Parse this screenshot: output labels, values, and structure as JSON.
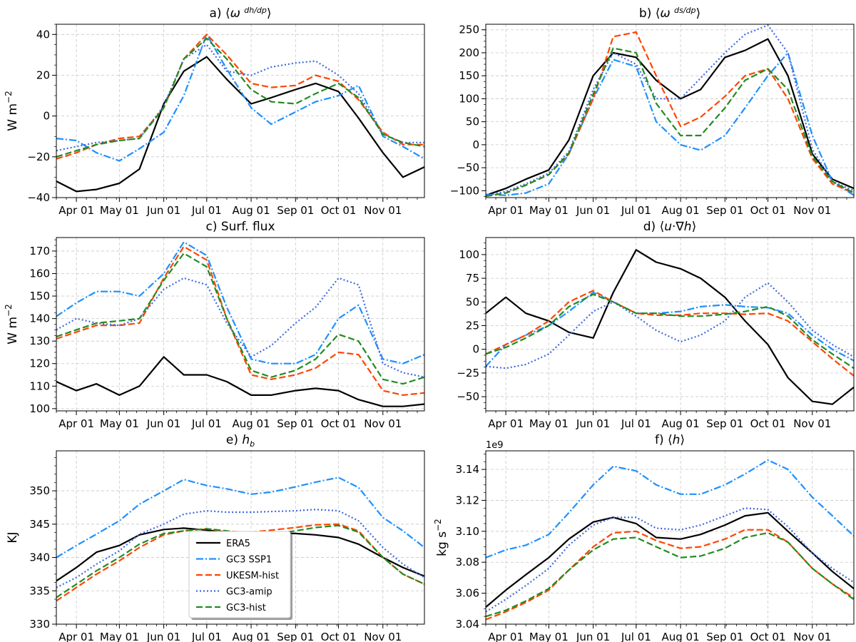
{
  "figure": {
    "x_tick_labels": [
      "Apr 01",
      "May 01",
      "Jun 01",
      "Jul 01",
      "Aug 01",
      "Sep 01",
      "Oct 01",
      "Nov 01"
    ],
    "series_styles": [
      {
        "name": "ERA5",
        "color": "#000000",
        "dash": "solid"
      },
      {
        "name": "GC3 SSP1",
        "color": "#1E90FF",
        "dash": "dashdot"
      },
      {
        "name": "UKESM-hist",
        "color": "#FF4500",
        "dash": "dashed"
      },
      {
        "name": "GC3-amip",
        "color": "#4169E1",
        "dash": "dotted"
      },
      {
        "name": "GC3-hist",
        "color": "#228B22",
        "dash": "dashed"
      }
    ],
    "legend_location": "panel e, lower center"
  },
  "chart_data": [
    {
      "type": "line",
      "panel": "a",
      "title": "a) ⟨ω dh/dp⟩",
      "ylabel": "W m−2",
      "xlim": [
        "Mar 18",
        "Nov 30"
      ],
      "ylim": [
        -40,
        45
      ],
      "yticks": [
        -40,
        -20,
        0,
        20,
        40
      ],
      "x": [
        "Mar 18",
        "Apr 01",
        "Apr 15",
        "May 01",
        "May 15",
        "Jun 01",
        "Jun 15",
        "Jul 01",
        "Jul 15",
        "Aug 01",
        "Aug 15",
        "Sep 01",
        "Sep 15",
        "Oct 01",
        "Oct 15",
        "Nov 01",
        "Nov 15",
        "Nov 30"
      ],
      "series": [
        {
          "name": "ERA5",
          "values": [
            -32,
            -37,
            -36,
            -33,
            -26,
            6,
            22,
            29,
            18,
            6,
            9,
            13,
            16,
            12,
            -1,
            -18,
            -30,
            -25
          ]
        },
        {
          "name": "GC3 SSP1",
          "values": [
            -11,
            -12,
            -18,
            -22,
            -16,
            -8,
            10,
            40,
            23,
            4,
            -4,
            2,
            7,
            10,
            15,
            -10,
            -15,
            -21
          ]
        },
        {
          "name": "UKESM-hist",
          "values": [
            -21,
            -18,
            -14,
            -11,
            -10,
            4,
            28,
            40,
            30,
            16,
            14,
            15,
            20,
            17,
            8,
            -8,
            -14,
            -14
          ]
        },
        {
          "name": "GC3-amip",
          "values": [
            -17,
            -15,
            -13,
            -12,
            -11,
            5,
            28,
            35,
            22,
            20,
            24,
            26,
            27,
            20,
            11,
            -9,
            -13,
            -13
          ]
        },
        {
          "name": "GC3-hist",
          "values": [
            -20,
            -17,
            -14,
            -12,
            -11,
            4,
            28,
            38,
            28,
            13,
            7,
            6,
            11,
            16,
            9,
            -9,
            -13,
            -15
          ]
        }
      ]
    },
    {
      "type": "line",
      "panel": "b",
      "title": "b) ⟨ω ds/dp⟩",
      "ylabel": "",
      "xlim": [
        "Mar 18",
        "Nov 30"
      ],
      "ylim": [
        -115,
        262
      ],
      "yticks": [
        -100,
        -50,
        0,
        50,
        100,
        150,
        200,
        250
      ],
      "x": [
        "Mar 18",
        "Apr 01",
        "Apr 15",
        "May 01",
        "May 15",
        "Jun 01",
        "Jun 15",
        "Jul 01",
        "Jul 15",
        "Aug 01",
        "Aug 15",
        "Sep 01",
        "Sep 15",
        "Oct 01",
        "Oct 15",
        "Nov 01",
        "Nov 15",
        "Nov 30"
      ],
      "series": [
        {
          "name": "ERA5",
          "values": [
            -110,
            -95,
            -75,
            -55,
            10,
            150,
            200,
            190,
            140,
            100,
            120,
            190,
            205,
            230,
            150,
            -20,
            -75,
            -95
          ]
        },
        {
          "name": "GC3 SSP1",
          "values": [
            -108,
            -110,
            -105,
            -85,
            -20,
            100,
            185,
            170,
            50,
            0,
            -12,
            20,
            80,
            150,
            200,
            20,
            -80,
            -110
          ]
        },
        {
          "name": "UKESM-hist",
          "values": [
            -112,
            -105,
            -88,
            -65,
            -20,
            100,
            235,
            245,
            150,
            40,
            60,
            105,
            150,
            165,
            100,
            -30,
            -85,
            -105
          ]
        },
        {
          "name": "GC3-amip",
          "values": [
            -110,
            -102,
            -85,
            -62,
            -15,
            120,
            200,
            175,
            100,
            100,
            145,
            200,
            240,
            260,
            200,
            -10,
            -80,
            -100
          ]
        },
        {
          "name": "GC3-hist",
          "values": [
            -112,
            -105,
            -88,
            -65,
            -18,
            110,
            210,
            200,
            90,
            20,
            20,
            80,
            140,
            165,
            120,
            -25,
            -80,
            -105
          ]
        }
      ]
    },
    {
      "type": "line",
      "panel": "c",
      "title": "c) Surf. flux",
      "ylabel": "W m−2",
      "xlim": [
        "Mar 18",
        "Nov 30"
      ],
      "ylim": [
        99,
        176
      ],
      "yticks": [
        100,
        110,
        120,
        130,
        140,
        150,
        160,
        170
      ],
      "x": [
        "Mar 18",
        "Apr 01",
        "Apr 15",
        "May 01",
        "May 15",
        "Jun 01",
        "Jun 15",
        "Jul 01",
        "Jul 15",
        "Aug 01",
        "Aug 15",
        "Sep 01",
        "Sep 15",
        "Oct 01",
        "Oct 15",
        "Nov 01",
        "Nov 15",
        "Nov 30"
      ],
      "series": [
        {
          "name": "ERA5",
          "values": [
            112,
            108,
            111,
            106,
            110,
            123,
            115,
            115,
            112,
            106,
            106,
            108,
            109,
            108,
            104,
            101,
            101,
            102
          ]
        },
        {
          "name": "GC3 SSP1",
          "values": [
            141,
            147,
            152,
            152,
            150,
            160,
            174,
            168,
            145,
            122,
            120,
            120,
            124,
            140,
            146,
            122,
            120,
            124
          ]
        },
        {
          "name": "UKESM-hist",
          "values": [
            131,
            134,
            137,
            137,
            138,
            158,
            172,
            166,
            140,
            115,
            113,
            115,
            118,
            125,
            124,
            108,
            106,
            107
          ]
        },
        {
          "name": "GC3-amip",
          "values": [
            135,
            140,
            138,
            137,
            140,
            153,
            158,
            155,
            138,
            123,
            128,
            138,
            145,
            158,
            155,
            120,
            116,
            114
          ]
        },
        {
          "name": "GC3-hist",
          "values": [
            132,
            135,
            138,
            139,
            140,
            157,
            169,
            163,
            140,
            117,
            114,
            117,
            122,
            133,
            130,
            113,
            111,
            114
          ]
        }
      ]
    },
    {
      "type": "line",
      "panel": "d",
      "title": "d) ⟨u·∇h⟩",
      "ylabel": "",
      "xlim": [
        "Mar 18",
        "Nov 30"
      ],
      "ylim": [
        -65,
        118
      ],
      "yticks": [
        -50,
        -25,
        0,
        25,
        50,
        75,
        100
      ],
      "x": [
        "Mar 18",
        "Apr 01",
        "Apr 15",
        "May 01",
        "May 15",
        "Jun 01",
        "Jun 15",
        "Jul 01",
        "Jul 15",
        "Aug 01",
        "Aug 15",
        "Sep 01",
        "Sep 15",
        "Oct 01",
        "Oct 15",
        "Nov 01",
        "Nov 15",
        "Nov 30"
      ],
      "series": [
        {
          "name": "ERA5",
          "values": [
            38,
            55,
            38,
            30,
            18,
            12,
            60,
            105,
            92,
            85,
            75,
            55,
            30,
            5,
            -30,
            -55,
            -58,
            -40
          ]
        },
        {
          "name": "GC3 SSP1",
          "values": [
            -18,
            5,
            15,
            25,
            40,
            60,
            50,
            38,
            38,
            40,
            45,
            47,
            45,
            44,
            38,
            15,
            0,
            -12
          ]
        },
        {
          "name": "UKESM-hist",
          "values": [
            -5,
            5,
            15,
            30,
            50,
            62,
            50,
            38,
            36,
            36,
            38,
            38,
            37,
            38,
            30,
            8,
            -10,
            -28
          ]
        },
        {
          "name": "GC3-amip",
          "values": [
            -18,
            -20,
            -16,
            -5,
            15,
            40,
            50,
            35,
            20,
            8,
            15,
            30,
            55,
            70,
            50,
            20,
            5,
            -8
          ]
        },
        {
          "name": "GC3-hist",
          "values": [
            -5,
            2,
            12,
            25,
            45,
            58,
            50,
            38,
            38,
            35,
            35,
            37,
            40,
            45,
            35,
            10,
            -5,
            -20
          ]
        }
      ]
    },
    {
      "type": "line",
      "panel": "e",
      "title": "e) hb",
      "ylabel": "KJ",
      "xlim": [
        "Mar 18",
        "Nov 30"
      ],
      "ylim": [
        330,
        356
      ],
      "yticks": [
        330,
        335,
        340,
        345,
        350
      ],
      "x": [
        "Mar 18",
        "Apr 01",
        "Apr 15",
        "May 01",
        "May 15",
        "Jun 01",
        "Jun 15",
        "Jul 01",
        "Jul 15",
        "Aug 01",
        "Aug 15",
        "Sep 01",
        "Sep 15",
        "Oct 01",
        "Oct 15",
        "Nov 01",
        "Nov 15",
        "Nov 30"
      ],
      "series": [
        {
          "name": "ERA5",
          "values": [
            336.5,
            338.5,
            340.8,
            341.8,
            343.4,
            344.2,
            344.4,
            344.1,
            343.8,
            343.6,
            343.7,
            343.6,
            343.4,
            343.0,
            342.0,
            340.0,
            338.5,
            337.2
          ]
        },
        {
          "name": "GC3 SSP1",
          "values": [
            340,
            341.8,
            343.5,
            345.5,
            348,
            350,
            351.7,
            350.8,
            350.3,
            349.5,
            349.8,
            350.6,
            351.3,
            352,
            350.5,
            346,
            344,
            341.5
          ]
        },
        {
          "name": "UKESM-hist",
          "values": [
            333.5,
            335.5,
            337.5,
            339.5,
            341.5,
            343.4,
            344,
            344.3,
            343.9,
            343.8,
            344.1,
            344.5,
            344.9,
            345,
            344,
            340,
            337.5,
            336
          ]
        },
        {
          "name": "GC3-amip",
          "values": [
            335.5,
            337,
            339,
            341,
            343.5,
            345,
            346.5,
            347,
            346.8,
            346.8,
            346.9,
            347,
            347.2,
            347,
            345.5,
            341.5,
            339,
            337
          ]
        },
        {
          "name": "GC3-hist",
          "values": [
            334,
            336,
            338,
            340,
            342,
            343.6,
            344,
            344.3,
            344,
            343.5,
            343.5,
            344,
            344.5,
            344.8,
            343.8,
            340,
            337.5,
            336
          ]
        }
      ]
    },
    {
      "type": "line",
      "panel": "f",
      "title": "f) ⟨h⟩",
      "ylabel": "kg s−2",
      "scale_label": "1e9",
      "xlim": [
        "Mar 18",
        "Nov 30"
      ],
      "ylim": [
        3.04,
        3.152
      ],
      "yticks": [
        3.04,
        3.06,
        3.08,
        3.1,
        3.12,
        3.14
      ],
      "y_tick_labels": [
        "3.04",
        "3.06",
        "3.08",
        "3.10",
        "3.12",
        "3.14"
      ],
      "x": [
        "Mar 18",
        "Apr 01",
        "Apr 15",
        "May 01",
        "May 15",
        "Jun 01",
        "Jun 15",
        "Jul 01",
        "Jul 15",
        "Aug 01",
        "Aug 15",
        "Sep 01",
        "Sep 15",
        "Oct 01",
        "Oct 15",
        "Nov 01",
        "Nov 15",
        "Nov 30"
      ],
      "series": [
        {
          "name": "ERA5",
          "values": [
            3.051,
            3.062,
            3.072,
            3.083,
            3.095,
            3.106,
            3.109,
            3.105,
            3.096,
            3.095,
            3.098,
            3.104,
            3.11,
            3.112,
            3.1,
            3.086,
            3.074,
            3.063
          ]
        },
        {
          "name": "GC3 SSP1",
          "values": [
            3.083,
            3.088,
            3.091,
            3.098,
            3.112,
            3.13,
            3.142,
            3.139,
            3.13,
            3.124,
            3.124,
            3.13,
            3.137,
            3.146,
            3.14,
            3.122,
            3.11,
            3.097
          ]
        },
        {
          "name": "UKESM-hist",
          "values": [
            3.043,
            3.048,
            3.054,
            3.062,
            3.075,
            3.09,
            3.099,
            3.1,
            3.094,
            3.089,
            3.09,
            3.095,
            3.101,
            3.101,
            3.093,
            3.076,
            3.066,
            3.057
          ]
        },
        {
          "name": "GC3-amip",
          "values": [
            3.048,
            3.056,
            3.065,
            3.076,
            3.091,
            3.104,
            3.109,
            3.109,
            3.102,
            3.101,
            3.104,
            3.11,
            3.115,
            3.114,
            3.103,
            3.086,
            3.076,
            3.067
          ]
        },
        {
          "name": "GC3-hist",
          "values": [
            3.045,
            3.049,
            3.055,
            3.063,
            3.075,
            3.088,
            3.095,
            3.096,
            3.09,
            3.083,
            3.084,
            3.089,
            3.096,
            3.099,
            3.093,
            3.076,
            3.066,
            3.056
          ]
        }
      ]
    }
  ]
}
